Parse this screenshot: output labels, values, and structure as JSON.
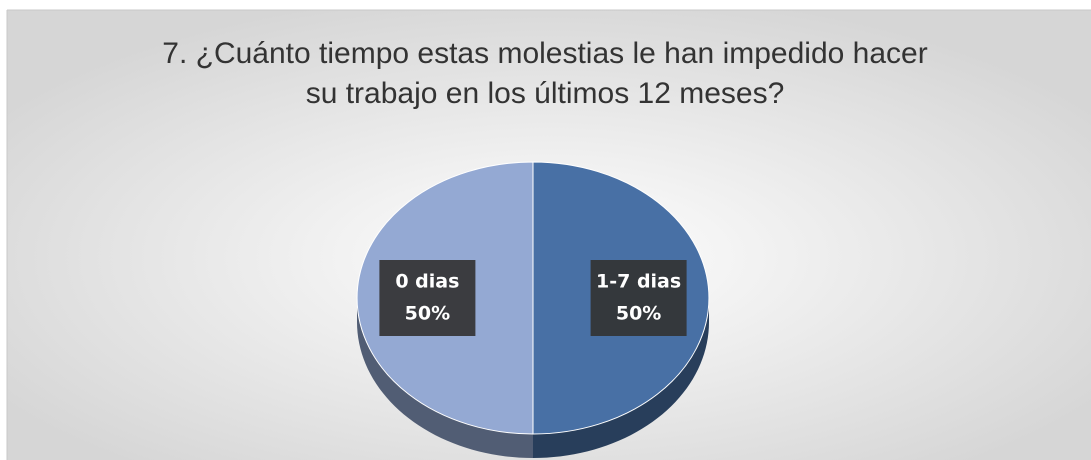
{
  "chart_data": {
    "type": "pie",
    "title": "7. ¿Cuánto tiempo estas molestias le han impedido hacer su trabajo en los últimos 12 meses?",
    "categories": [
      "1-7 dias",
      "0 dias"
    ],
    "values": [
      50,
      50
    ],
    "value_labels": [
      "50%",
      "50%"
    ],
    "colors": [
      "#4870a5",
      "#94a9d3"
    ]
  }
}
